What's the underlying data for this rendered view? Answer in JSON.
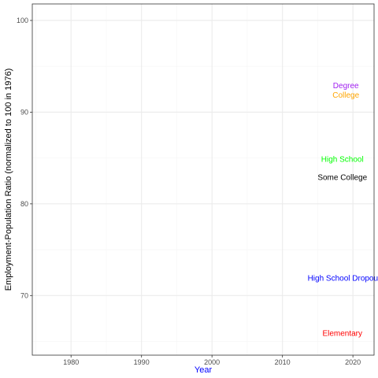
{
  "chart_data": {
    "type": "line",
    "title": "",
    "xlabel": "Year",
    "ylabel": "Employment-Population Ratio (normalized to 100 in 1976)",
    "xlim": [
      1974.5,
      2023
    ],
    "ylim": [
      63.5,
      101.8
    ],
    "x_ticks": [
      1980,
      1990,
      2000,
      2010,
      2020
    ],
    "x_minor_ticks": [
      1975,
      1985,
      1995,
      2005,
      2015
    ],
    "y_ticks": [
      70,
      80,
      90,
      100
    ],
    "y_minor_ticks": [
      65,
      75,
      85,
      95
    ],
    "grid": true,
    "legend": "none",
    "colors": {
      "xlabel": "#0000ff",
      "ylabel": "#000000",
      "grid_major": "#ebebeb",
      "grid_minor": "#f5f5f5",
      "panel_border": "#333333"
    },
    "series": [
      {
        "name": "Degree",
        "color": "#a020f0",
        "label_x": 2019,
        "label_y": 92.9,
        "values": []
      },
      {
        "name": "College",
        "color": "#ffa500",
        "label_x": 2019,
        "label_y": 91.9,
        "values": []
      },
      {
        "name": "High School",
        "color": "#00ff00",
        "label_x": 2018.5,
        "label_y": 84.9,
        "values": []
      },
      {
        "name": "Some College",
        "color": "#000000",
        "label_x": 2018.5,
        "label_y": 82.9,
        "values": []
      },
      {
        "name": "High School Dropouts",
        "color": "#0000ff",
        "label_x": 2019,
        "label_y": 71.9,
        "values": []
      },
      {
        "name": "Elementary",
        "color": "#ff0000",
        "label_x": 2018.5,
        "label_y": 65.9,
        "values": []
      }
    ]
  }
}
